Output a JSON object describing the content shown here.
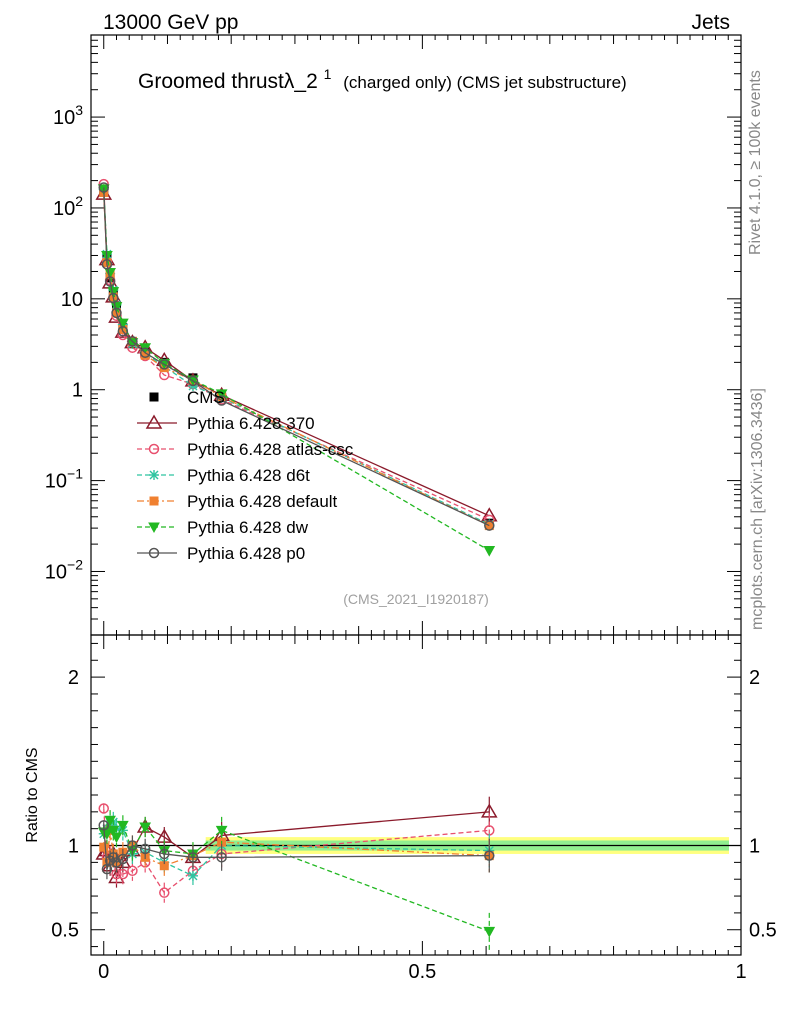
{
  "header": {
    "left": "13000 GeV pp",
    "right": "Jets"
  },
  "side_labels": {
    "rivet": "Rivet 4.1.0, ≥ 100k events",
    "mcplots": "mcplots.cern.ch [arXiv:1306.3436]"
  },
  "colors": {
    "CMS": "#000000",
    "p370": "#8b1a2b",
    "atlas": "#e8506e",
    "d6t": "#2ec4a0",
    "default": "#f08030",
    "dw": "#22b822",
    "p0": "#555555",
    "band_inner": "#90ee90",
    "band_outer": "#ffff80"
  },
  "chart_data": [
    {
      "type": "line",
      "panel": "main",
      "title_main": "Groomed thrustλ_2",
      "title_sup": "1",
      "title_suffix": "(charged only) (CMS jet substructure)",
      "yscale": "log",
      "ylim": [
        0.002,
        8000
      ],
      "xlim": [
        -0.02,
        1.0
      ],
      "ytick_values": [
        0.01,
        0.1,
        1,
        10,
        100,
        1000
      ],
      "ytick_labels": [
        {
          "base": "10",
          "exp": "−2"
        },
        {
          "base": "10",
          "exp": "−1"
        },
        {
          "base": "1",
          "exp": ""
        },
        {
          "base": "10",
          "exp": ""
        },
        {
          "base": "10",
          "exp": "2"
        },
        {
          "base": "10",
          "exp": "3"
        }
      ],
      "watermark": "(CMS_2021_I1920187)",
      "x": [
        0.0,
        0.005,
        0.01,
        0.015,
        0.02,
        0.03,
        0.045,
        0.065,
        0.095,
        0.14,
        0.185,
        0.605
      ],
      "series": [
        {
          "name": "CMS",
          "key": "CMS",
          "marker": "square",
          "dash": "none",
          "values": [
            150,
            28,
            17,
            11,
            7.8,
            4.8,
            3.4,
            2.6,
            2.0,
            1.35,
            0.82,
            0.034
          ]
        },
        {
          "name": "Pythia 6.428 370",
          "key": "p370",
          "marker": "triangle-open",
          "dash": "solid",
          "values": [
            142,
            27,
            15,
            10.5,
            6.3,
            4.3,
            3.3,
            2.9,
            2.1,
            1.25,
            0.87,
            0.041
          ]
        },
        {
          "name": "Pythia 6.428 atlas-csc",
          "key": "atlas",
          "marker": "circle-open",
          "dash": "dashed",
          "values": [
            183,
            26,
            16,
            10.2,
            6.5,
            4.0,
            2.9,
            2.35,
            1.45,
            1.15,
            0.78,
            0.037
          ]
        },
        {
          "name": "Pythia 6.428 d6t",
          "key": "d6t",
          "marker": "star",
          "dash": "dashed",
          "values": [
            160,
            31,
            19,
            12.5,
            8.6,
            5.2,
            3.2,
            2.5,
            1.8,
            1.1,
            0.82,
            0.033
          ]
        },
        {
          "name": "Pythia 6.428 default",
          "key": "default",
          "marker": "square",
          "dash": "dashdot",
          "values": [
            148,
            25,
            18.5,
            10.5,
            7.0,
            4.6,
            3.4,
            2.4,
            1.75,
            1.27,
            0.84,
            0.032
          ]
        },
        {
          "name": "Pythia 6.428 dw",
          "key": "dw",
          "marker": "triangle-down",
          "dash": "dashed",
          "values": [
            162,
            30,
            19.5,
            12.0,
            8.2,
            5.4,
            3.3,
            2.9,
            1.95,
            1.28,
            0.9,
            0.017
          ]
        },
        {
          "name": "Pythia 6.428 p0",
          "key": "p0",
          "marker": "circle-open",
          "dash": "solid",
          "values": [
            168,
            24,
            15.5,
            10.2,
            7.0,
            4.4,
            3.4,
            2.55,
            1.9,
            1.25,
            0.76,
            0.032
          ]
        }
      ]
    },
    {
      "type": "line",
      "panel": "ratio",
      "ylabel": "Ratio to CMS",
      "ylim": [
        0.35,
        2.25
      ],
      "xlim": [
        -0.02,
        1.0
      ],
      "ytick_values": [
        0.5,
        1,
        2
      ],
      "ytick_labels": [
        "0.5",
        "1",
        "2"
      ],
      "xtick_values": [
        0,
        0.5,
        1
      ],
      "xtick_labels": [
        "0",
        "0.5",
        "1"
      ],
      "x": [
        0.0,
        0.005,
        0.01,
        0.015,
        0.02,
        0.03,
        0.045,
        0.065,
        0.095,
        0.14,
        0.185,
        0.605
      ],
      "series": [
        {
          "name": "Pythia 6.428 370",
          "key": "p370",
          "values": [
            0.95,
            0.97,
            0.88,
            0.95,
            0.81,
            0.9,
            0.97,
            1.11,
            1.05,
            0.93,
            1.06,
            1.2
          ],
          "errors": [
            0.03,
            0.06,
            0.06,
            0.06,
            0.06,
            0.06,
            0.06,
            0.06,
            0.06,
            0.07,
            0.08,
            0.09
          ]
        },
        {
          "name": "Pythia 6.428 atlas-csc",
          "key": "atlas",
          "values": [
            1.22,
            0.93,
            0.94,
            0.93,
            0.83,
            0.83,
            0.85,
            0.9,
            0.72,
            0.85,
            0.95,
            1.09
          ],
          "errors": [
            0.03,
            0.06,
            0.06,
            0.06,
            0.06,
            0.06,
            0.06,
            0.06,
            0.06,
            0.07,
            0.08,
            0.1
          ]
        },
        {
          "name": "Pythia 6.428 d6t",
          "key": "d6t",
          "values": [
            1.07,
            1.1,
            1.12,
            1.14,
            1.1,
            1.09,
            0.95,
            0.96,
            0.9,
            0.82,
            1.0,
            0.97
          ],
          "errors": [
            0.03,
            0.06,
            0.06,
            0.06,
            0.06,
            0.06,
            0.06,
            0.06,
            0.06,
            0.07,
            0.08,
            0.1
          ]
        },
        {
          "name": "Pythia 6.428 default",
          "key": "default",
          "values": [
            0.99,
            0.9,
            1.09,
            0.95,
            0.9,
            0.96,
            1.0,
            0.93,
            0.88,
            0.94,
            1.02,
            0.94
          ],
          "errors": [
            0.03,
            0.06,
            0.06,
            0.06,
            0.06,
            0.06,
            0.06,
            0.06,
            0.06,
            0.07,
            0.08,
            0.1
          ]
        },
        {
          "name": "Pythia 6.428 dw",
          "key": "dw",
          "values": [
            1.08,
            1.07,
            1.15,
            1.09,
            1.05,
            1.12,
            0.97,
            1.11,
            0.97,
            0.95,
            1.09,
            0.49
          ],
          "errors": [
            0.03,
            0.06,
            0.06,
            0.06,
            0.06,
            0.06,
            0.06,
            0.06,
            0.06,
            0.07,
            0.08,
            0.11
          ]
        },
        {
          "name": "Pythia 6.428 p0",
          "key": "p0",
          "values": [
            1.12,
            0.86,
            0.91,
            0.93,
            0.9,
            0.92,
            1.0,
            0.98,
            0.95,
            0.93,
            0.93,
            0.94
          ],
          "errors": [
            0.03,
            0.06,
            0.06,
            0.06,
            0.06,
            0.06,
            0.06,
            0.06,
            0.06,
            0.07,
            0.08,
            0.1
          ]
        }
      ]
    }
  ]
}
